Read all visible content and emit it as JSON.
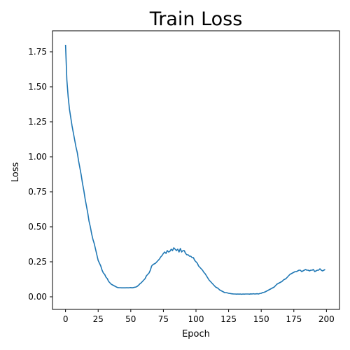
{
  "chart_data": {
    "type": "line",
    "title": "Train Loss",
    "xlabel": "Epoch",
    "ylabel": "Loss",
    "xlim": [
      -10,
      210
    ],
    "ylim": [
      -0.09,
      1.9
    ],
    "xticks": [
      0,
      25,
      50,
      75,
      100,
      125,
      150,
      175,
      200
    ],
    "yticks": [
      0.0,
      0.25,
      0.5,
      0.75,
      1.0,
      1.25,
      1.5,
      1.75
    ],
    "ytick_labels": [
      "0.00",
      "0.25",
      "0.50",
      "0.75",
      "1.00",
      "1.25",
      "1.50",
      "1.75"
    ],
    "grid": false,
    "line_color": "#1f77b4",
    "series": [
      {
        "x": [
          0,
          1,
          2,
          3,
          4,
          5,
          6,
          7,
          8,
          9,
          10,
          11,
          12,
          13,
          14,
          15,
          16,
          17,
          18,
          19,
          20,
          21,
          22,
          23,
          24,
          25,
          26,
          27,
          28,
          29,
          30,
          31,
          32,
          33,
          34,
          35,
          36,
          37,
          38,
          39,
          40,
          41,
          42,
          43,
          44,
          45,
          46,
          47,
          48,
          49,
          50,
          51,
          52,
          53,
          54,
          55,
          56,
          57,
          58,
          59,
          60,
          61,
          62,
          63,
          64,
          65,
          66,
          67,
          68,
          69,
          70,
          71,
          72,
          73,
          74,
          75,
          76,
          77,
          78,
          79,
          80,
          81,
          82,
          83,
          84,
          85,
          86,
          87,
          88,
          89,
          90,
          91,
          92,
          93,
          94,
          95,
          96,
          97,
          98,
          99,
          100,
          101,
          102,
          103,
          104,
          105,
          106,
          107,
          108,
          109,
          110,
          111,
          112,
          113,
          114,
          115,
          116,
          117,
          118,
          119,
          120,
          121,
          122,
          123,
          124,
          125,
          126,
          127,
          128,
          129,
          130,
          131,
          132,
          133,
          134,
          135,
          136,
          137,
          138,
          139,
          140,
          141,
          142,
          143,
          144,
          145,
          146,
          147,
          148,
          149,
          150,
          151,
          152,
          153,
          154,
          155,
          156,
          157,
          158,
          159,
          160,
          161,
          162,
          163,
          164,
          165,
          166,
          167,
          168,
          169,
          170,
          171,
          172,
          173,
          174,
          175,
          176,
          177,
          178,
          179,
          180,
          181,
          182,
          183,
          184,
          185,
          186,
          187,
          188,
          189,
          190,
          191,
          192,
          193,
          194,
          195,
          196,
          197,
          198,
          199
        ],
        "values": [
          1.8,
          1.55,
          1.43,
          1.34,
          1.28,
          1.22,
          1.17,
          1.12,
          1.07,
          1.03,
          0.97,
          0.92,
          0.87,
          0.81,
          0.76,
          0.7,
          0.65,
          0.6,
          0.54,
          0.5,
          0.45,
          0.41,
          0.38,
          0.34,
          0.3,
          0.26,
          0.24,
          0.22,
          0.19,
          0.17,
          0.16,
          0.14,
          0.13,
          0.11,
          0.1,
          0.09,
          0.085,
          0.08,
          0.075,
          0.07,
          0.066,
          0.065,
          0.065,
          0.064,
          0.064,
          0.064,
          0.064,
          0.065,
          0.064,
          0.065,
          0.066,
          0.064,
          0.066,
          0.068,
          0.07,
          0.075,
          0.083,
          0.093,
          0.1,
          0.11,
          0.12,
          0.13,
          0.15,
          0.16,
          0.17,
          0.19,
          0.22,
          0.23,
          0.235,
          0.24,
          0.25,
          0.26,
          0.27,
          0.285,
          0.295,
          0.31,
          0.32,
          0.31,
          0.33,
          0.32,
          0.325,
          0.34,
          0.33,
          0.35,
          0.34,
          0.33,
          0.34,
          0.32,
          0.345,
          0.32,
          0.33,
          0.33,
          0.31,
          0.3,
          0.3,
          0.29,
          0.29,
          0.28,
          0.28,
          0.26,
          0.25,
          0.24,
          0.22,
          0.21,
          0.2,
          0.19,
          0.175,
          0.165,
          0.15,
          0.135,
          0.12,
          0.11,
          0.1,
          0.09,
          0.08,
          0.07,
          0.065,
          0.06,
          0.05,
          0.045,
          0.04,
          0.035,
          0.03,
          0.03,
          0.028,
          0.025,
          0.024,
          0.022,
          0.021,
          0.02,
          0.02,
          0.019,
          0.02,
          0.019,
          0.02,
          0.018,
          0.02,
          0.019,
          0.02,
          0.02,
          0.02,
          0.019,
          0.021,
          0.02,
          0.022,
          0.02,
          0.021,
          0.022,
          0.02,
          0.024,
          0.025,
          0.03,
          0.032,
          0.035,
          0.04,
          0.045,
          0.05,
          0.055,
          0.06,
          0.065,
          0.07,
          0.08,
          0.09,
          0.095,
          0.1,
          0.105,
          0.11,
          0.12,
          0.125,
          0.13,
          0.14,
          0.15,
          0.16,
          0.165,
          0.17,
          0.175,
          0.18,
          0.18,
          0.185,
          0.19,
          0.19,
          0.18,
          0.185,
          0.19,
          0.195,
          0.19,
          0.19,
          0.185,
          0.19,
          0.19,
          0.195,
          0.18,
          0.185,
          0.19,
          0.19,
          0.2,
          0.19,
          0.185,
          0.19,
          0.195
        ]
      }
    ]
  }
}
